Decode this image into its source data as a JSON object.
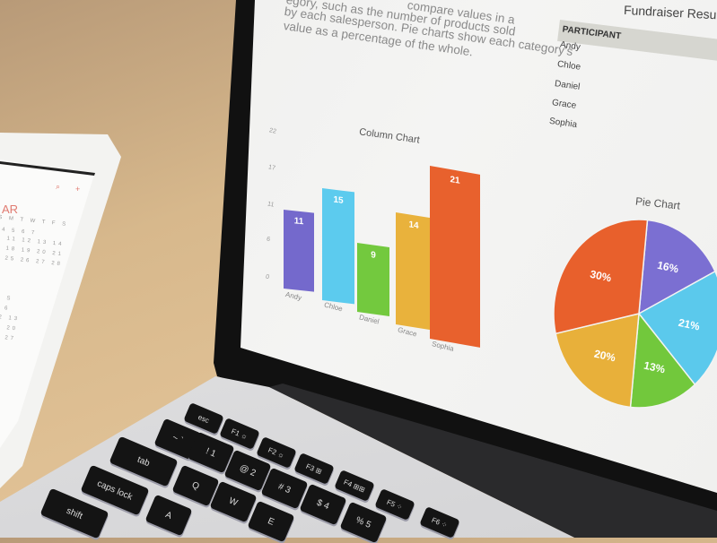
{
  "tablet": {
    "month_partial": "AR",
    "icons": [
      "search-icon",
      "plus-icon"
    ],
    "calendar_rows": [
      "S M T W T F S",
      "3 4 5 6 7",
      "10 11 12 13 14",
      "17 18 19 20 21",
      "24 25 26 27 28"
    ],
    "calendar_rows_lower": [
      "F S",
      "5 6",
      "12 13",
      "19 20",
      "26 27"
    ]
  },
  "screen": {
    "paragraph_lines": [
      "compare values in a",
      "egory, such as the number of products sold",
      "by each salesperson. Pie charts show each category's",
      "value as a percentage of the whole."
    ],
    "table": {
      "title": "Fundraiser Results",
      "header": "PARTICIPANT",
      "rows": [
        "Andy",
        "Chloe",
        "Daniel",
        "Grace",
        "Sophia"
      ]
    }
  },
  "chart_data": [
    {
      "type": "bar",
      "title": "Column Chart",
      "categories": [
        "Andy",
        "Chloe",
        "Daniel",
        "Grace",
        "Sophia"
      ],
      "values": [
        11,
        15,
        9,
        14,
        21
      ],
      "yticks": [
        "0",
        "6",
        "11",
        "17",
        "22"
      ],
      "ylim": [
        0,
        22
      ],
      "grid": true,
      "colors": [
        "#7469cc",
        "#5ccbee",
        "#73c93e",
        "#e9b23c",
        "#e8612d"
      ]
    },
    {
      "type": "pie",
      "title": "Pie Chart",
      "labels": [
        "16%",
        "21%",
        "13%",
        "20%",
        "30%"
      ],
      "values": [
        16,
        21,
        13,
        20,
        30
      ],
      "colors": [
        "#7b6fd2",
        "#5bc9ec",
        "#72c83c",
        "#e8b03a",
        "#e8602c"
      ]
    }
  ],
  "keyboard": {
    "keys": [
      "esc",
      "F1 ☼",
      "F2 ☼",
      "F3 ⊞",
      "F4 ⊞⊞",
      "F5 ⁘",
      "F6 ⁘",
      "~ `",
      "! 1",
      "@ 2",
      "# 3",
      "$ 4",
      "% 5",
      "tab",
      "Q",
      "W",
      "E",
      "caps lock",
      "A",
      "shift"
    ]
  }
}
